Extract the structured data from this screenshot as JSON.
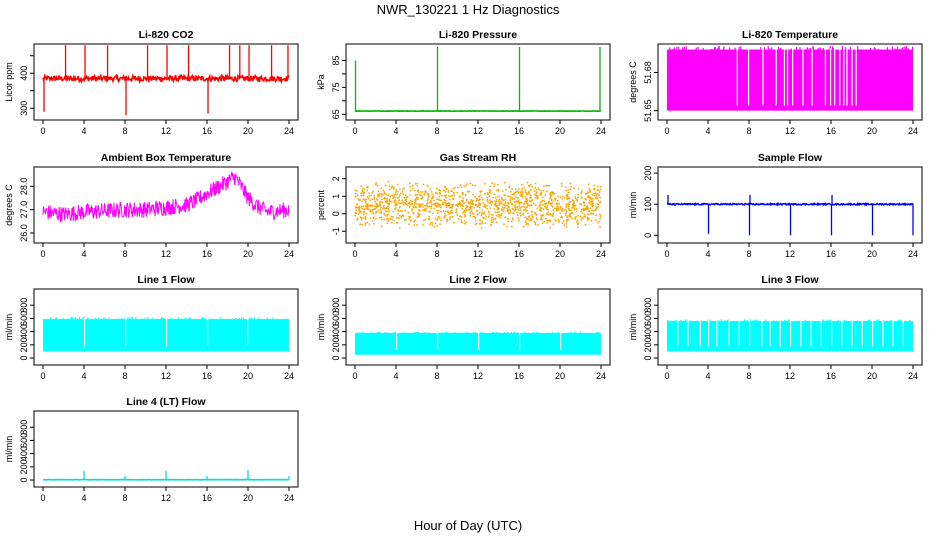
{
  "title": "NWR_130221  1 Hz Diagnostics",
  "xlabel": "Hour of Day (UTC)",
  "chart_data": [
    {
      "type": "line",
      "title": "Li-820 CO2",
      "ylabel": "Licor ppm",
      "xlim": [
        0,
        24
      ],
      "ylim": [
        275,
        475
      ],
      "yticks": [
        300,
        350,
        400,
        450
      ],
      "ytick_labels": [
        "300",
        "",
        "400",
        ""
      ],
      "color": "#ff0000",
      "series": [
        {
          "baseline": 385,
          "noise": 8,
          "spikes": [
            {
              "x": 0.1,
              "y": 290
            },
            {
              "x": 2.2,
              "y": 480
            },
            {
              "x": 4.1,
              "y": 480
            },
            {
              "x": 6.3,
              "y": 480
            },
            {
              "x": 8.1,
              "y": 280
            },
            {
              "x": 10.2,
              "y": 480
            },
            {
              "x": 12.1,
              "y": 480
            },
            {
              "x": 14.2,
              "y": 480
            },
            {
              "x": 16.1,
              "y": 285
            },
            {
              "x": 18.2,
              "y": 480
            },
            {
              "x": 19.2,
              "y": 480
            },
            {
              "x": 20.1,
              "y": 480
            },
            {
              "x": 22.3,
              "y": 480
            },
            {
              "x": 23.9,
              "y": 480
            }
          ]
        }
      ]
    },
    {
      "type": "line",
      "title": "Li-820 Pressure",
      "ylabel": "kPa",
      "xlim": [
        0,
        24
      ],
      "ylim": [
        64,
        90
      ],
      "yticks": [
        65,
        70,
        75,
        80,
        85
      ],
      "ytick_labels": [
        "65",
        "",
        "75",
        "",
        "85"
      ],
      "color": "#00bb00",
      "series": [
        {
          "baseline": 66.2,
          "noise": 0.1,
          "spikes": [
            {
              "x": 0.05,
              "y": 85
            },
            {
              "x": 8.05,
              "y": 90
            },
            {
              "x": 16.05,
              "y": 90
            },
            {
              "x": 23.9,
              "y": 90
            }
          ]
        }
      ]
    },
    {
      "type": "area",
      "title": "Li-820 Temperature",
      "ylabel": "degrees C",
      "xlim": [
        0,
        24
      ],
      "ylim": [
        51.645,
        51.7
      ],
      "yticks": [
        51.65,
        51.68
      ],
      "ytick_labels": [
        "51.65",
        "51.68"
      ],
      "color": "#ff00ff",
      "series": [
        {
          "low": 51.65,
          "high": 51.698,
          "gaps": [
            6.8,
            7.9,
            9.3,
            10.6,
            11.4,
            11.7,
            12.2,
            13.2,
            14.1,
            15.4,
            15.9,
            16.3,
            16.8,
            17.2,
            17.5,
            18.0,
            18.4
          ]
        }
      ]
    },
    {
      "type": "line",
      "title": "Ambient Box Temperature",
      "ylabel": "degrees C",
      "xlim": [
        0,
        24
      ],
      "ylim": [
        25.7,
        28.7
      ],
      "yticks": [
        26.0,
        27.0,
        28.0
      ],
      "ytick_labels": [
        "26.0",
        "27.0",
        "28.0"
      ],
      "color": "#ff00ff",
      "series": [
        {
          "x": [
            0,
            2,
            4,
            6,
            8,
            10,
            12,
            14,
            15,
            16,
            17,
            18,
            18.7,
            19.2,
            20,
            21,
            22,
            23,
            24
          ],
          "y": [
            26.9,
            26.8,
            26.9,
            26.95,
            27.0,
            27.0,
            27.1,
            27.2,
            27.4,
            27.7,
            27.95,
            28.2,
            28.4,
            28.1,
            27.5,
            27.1,
            26.9,
            26.95,
            27.0
          ],
          "noise": 0.35
        }
      ]
    },
    {
      "type": "scatter",
      "title": "Gas Stream RH",
      "ylabel": "percent",
      "xlim": [
        0,
        24
      ],
      "ylim": [
        -1.5,
        2.5
      ],
      "yticks": [
        -1,
        0,
        1,
        2
      ],
      "ytick_labels": [
        "-1",
        "0",
        "1",
        "2"
      ],
      "color": "#ffa500",
      "series": [
        {
          "center": 0.5,
          "spread": 1.4
        }
      ]
    },
    {
      "type": "line",
      "title": "Sample Flow",
      "ylabel": "ml/min",
      "xlim": [
        0,
        24
      ],
      "ylim": [
        -15,
        210
      ],
      "yticks": [
        0,
        100,
        200
      ],
      "ytick_labels": [
        "0",
        "100",
        "200"
      ],
      "color": "#0000ff",
      "series": [
        {
          "baseline": 100,
          "noise": 2,
          "spikes": [
            {
              "x": 0.1,
              "y": 130
            },
            {
              "x": 4.05,
              "y": 5
            },
            {
              "x": 8.05,
              "y": 0
            },
            {
              "x": 8.1,
              "y": 130
            },
            {
              "x": 12.05,
              "y": 0
            },
            {
              "x": 16.05,
              "y": 0
            },
            {
              "x": 16.1,
              "y": 130
            },
            {
              "x": 20.05,
              "y": 0
            },
            {
              "x": 24.0,
              "y": 0
            }
          ]
        }
      ]
    },
    {
      "type": "area",
      "title": "Line 1 Flow",
      "ylabel": "ml/min",
      "xlim": [
        0,
        24
      ],
      "ylim": [
        -60,
        1000
      ],
      "yticks": [
        0,
        200,
        400,
        600,
        800
      ],
      "ytick_labels": [
        "0",
        "200",
        "400",
        "600",
        "800"
      ],
      "color": "#00ffff",
      "series": [
        {
          "low": 100,
          "high": 590,
          "gaps": [
            4.0,
            8.0,
            12.0,
            16.0,
            19.9,
            24.0
          ]
        }
      ]
    },
    {
      "type": "area",
      "title": "Line 2 Flow",
      "ylabel": "ml/min",
      "xlim": [
        0,
        24
      ],
      "ylim": [
        -60,
        1000
      ],
      "yticks": [
        0,
        200,
        400,
        600,
        800
      ],
      "ytick_labels": [
        "0",
        "200",
        "400",
        "600",
        "800"
      ],
      "color": "#00ffff",
      "series": [
        {
          "low": 50,
          "high": 380,
          "gaps": [
            4.0,
            8.0,
            12.0,
            16.0,
            20.0
          ]
        }
      ]
    },
    {
      "type": "area",
      "title": "Line 3 Flow",
      "ylabel": "ml/min",
      "xlim": [
        0,
        24
      ],
      "ylim": [
        -60,
        1000
      ],
      "yticks": [
        0,
        200,
        400,
        600,
        800
      ],
      "ytick_labels": [
        "0",
        "200",
        "400",
        "600",
        "800"
      ],
      "color": "#00ffff",
      "series": [
        {
          "low": 100,
          "high": 560,
          "gaps": [
            1.0,
            2.0,
            3.2,
            4.0,
            4.8,
            6.0,
            7.0,
            8.0,
            9.2,
            10.0,
            11.0,
            12.0,
            13.0,
            14.0,
            15.0,
            16.0,
            17.0,
            18.0,
            19.0,
            20.0,
            21.0,
            22.0,
            23.0
          ]
        }
      ]
    },
    {
      "type": "line",
      "title": "Line 4 (LT) Flow",
      "ylabel": "ml/min",
      "xlim": [
        0,
        24
      ],
      "ylim": [
        -60,
        1000
      ],
      "yticks": [
        0,
        200,
        400,
        600,
        800
      ],
      "ytick_labels": [
        "0",
        "200",
        "400",
        "600",
        "800"
      ],
      "color": "#00dddd",
      "series": [
        {
          "baseline": 5,
          "noise": 2,
          "spikes": [
            {
              "x": 4.0,
              "y": 140
            },
            {
              "x": 8.0,
              "y": 60
            },
            {
              "x": 12.0,
              "y": 140
            },
            {
              "x": 16.0,
              "y": 60
            },
            {
              "x": 20.0,
              "y": 150
            },
            {
              "x": 24.0,
              "y": 60
            }
          ]
        }
      ]
    }
  ],
  "xticks": [
    0,
    4,
    8,
    12,
    16,
    20,
    24
  ]
}
